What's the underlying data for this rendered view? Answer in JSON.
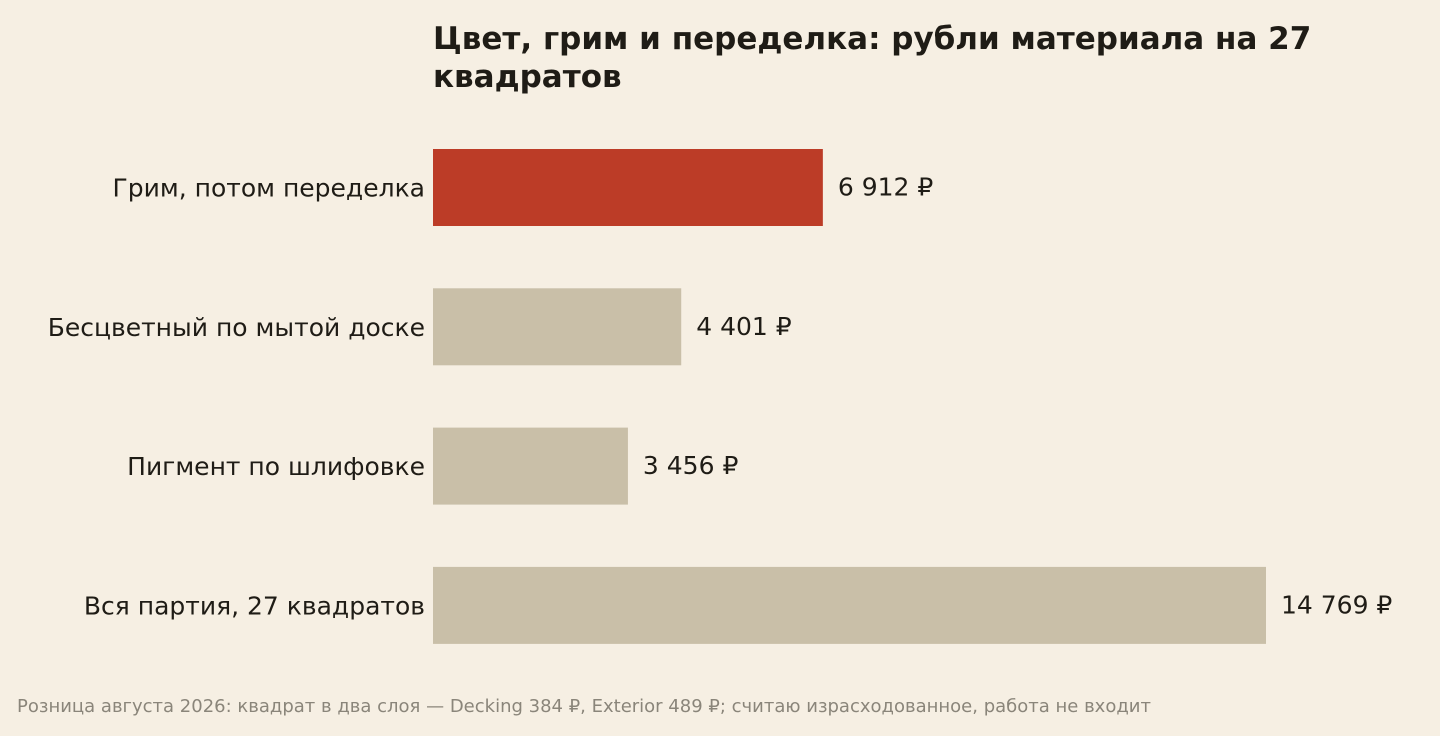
{
  "chart_data": {
    "type": "bar",
    "orientation": "horizontal",
    "title": "Цвет, грим и переделка: рубли материала на 27 квадратов",
    "categories": [
      "Грим, потом переделка",
      "Бесцветный по мытой доске",
      "Пигмент по шлифовке",
      "Вся партия, 27 квадратов"
    ],
    "values": [
      6912,
      4401,
      3456,
      14769
    ],
    "value_labels": [
      "6 912 ₽",
      "4 401 ₽",
      "3 456 ₽",
      "14 769 ₽"
    ],
    "highlight_index": 0,
    "colors": {
      "highlight": "#bc3c27",
      "default": "#c9bfa8",
      "background": "#f6efe3",
      "text": "#1f1c16",
      "note": "#8a857a"
    },
    "xlim": [
      0,
      14769
    ],
    "grid": false,
    "legend": "none",
    "note": "Розница августа 2026: квадрат в два слоя — Decking 384 ₽, Exterior 489 ₽; считаю израсходованное, работа не входит"
  }
}
